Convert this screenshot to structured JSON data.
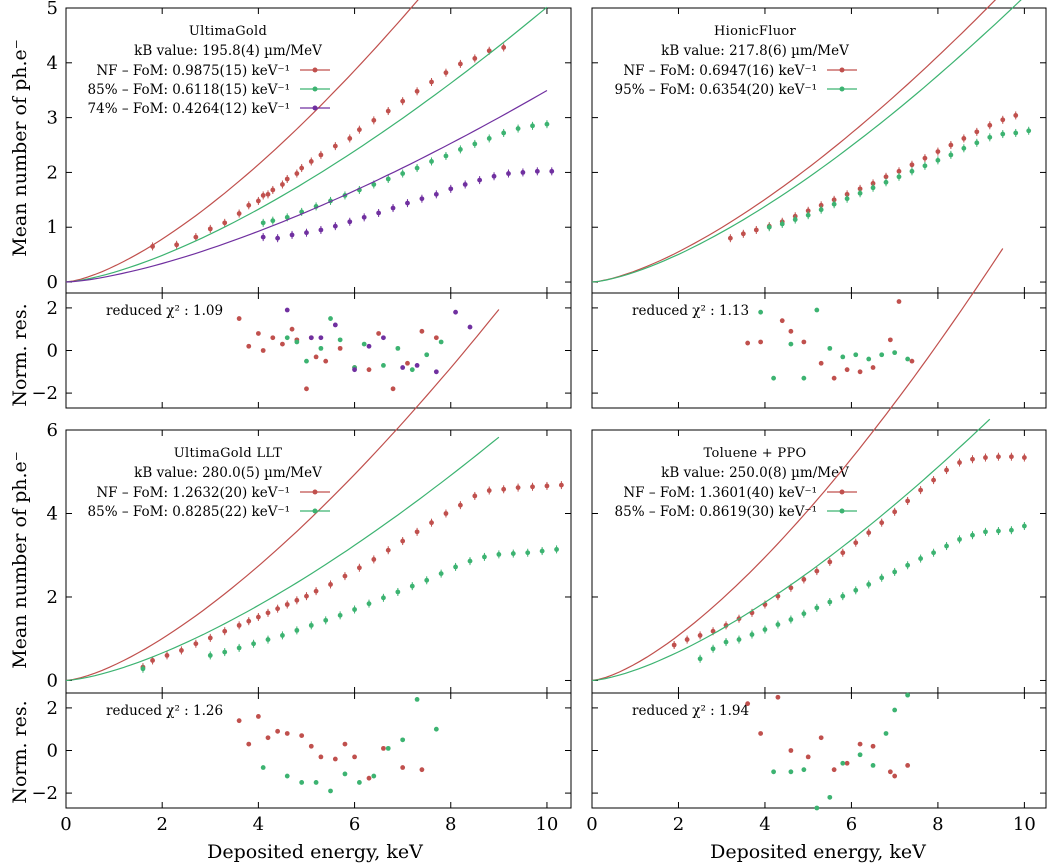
{
  "x_axis_label": "Deposited energy, keV",
  "y_axis_label_main": "Mean number of ph.e⁻",
  "y_axis_label_res": "Norm. res.",
  "chart_data": [
    {
      "type": "scatter",
      "title": "UltimaGold",
      "kb_text": "kB value: 195.8(4) µm/MeV",
      "xlim": [
        0,
        10.5
      ],
      "ylim": [
        -0.2,
        5
      ],
      "yticks": [
        0,
        1,
        2,
        3,
        4,
        5
      ],
      "xticks": [
        0,
        2,
        4,
        6,
        8,
        10
      ],
      "res_ylim": [
        -2.7,
        2.7
      ],
      "res_yticks": [
        -2,
        0,
        2
      ],
      "chi2_text": "reduced χ² : 1.09",
      "series": [
        {
          "name": "NF – FoM: 0.9875(15) keV⁻¹",
          "color": "#c0504d",
          "fom": 0.9875,
          "fit_xmax": 9.0,
          "x": [
            1.8,
            2.3,
            2.7,
            3.0,
            3.3,
            3.6,
            3.8,
            4.0,
            4.1,
            4.2,
            4.3,
            4.5,
            4.6,
            4.8,
            4.9,
            5.1,
            5.3,
            5.6,
            5.9,
            6.1,
            6.4,
            6.7,
            7.0,
            7.3,
            7.6,
            7.9,
            8.2,
            8.5,
            8.8,
            9.1
          ],
          "y": [
            0.65,
            0.68,
            0.82,
            0.97,
            1.08,
            1.25,
            1.4,
            1.48,
            1.58,
            1.6,
            1.68,
            1.78,
            1.88,
            1.98,
            2.08,
            2.2,
            2.32,
            2.48,
            2.62,
            2.78,
            2.95,
            3.12,
            3.3,
            3.48,
            3.65,
            3.82,
            3.98,
            4.08,
            4.22,
            4.28
          ],
          "res_x": [
            3.6,
            3.8,
            4.0,
            4.1,
            4.3,
            4.5,
            4.7,
            4.8,
            5.0,
            5.1,
            5.2,
            5.4,
            5.7,
            6.0,
            6.3,
            6.5,
            6.8,
            7.1,
            7.4,
            7.7
          ],
          "res_y": [
            1.5,
            0.2,
            0.8,
            0.0,
            0.6,
            0.3,
            1.0,
            0.5,
            -1.8,
            0.6,
            -0.3,
            -0.5,
            0.1,
            -0.8,
            -0.9,
            0.8,
            -1.8,
            -0.6,
            0.9,
            0.6
          ]
        },
        {
          "name": "85% – FoM: 0.6118(15) keV⁻¹",
          "color": "#3cb371",
          "fom": 0.6118,
          "fit_xmax": 10.0,
          "x": [
            4.1,
            4.3,
            4.6,
            4.9,
            5.2,
            5.5,
            5.8,
            6.1,
            6.4,
            6.7,
            7.0,
            7.3,
            7.6,
            7.9,
            8.2,
            8.5,
            8.8,
            9.1,
            9.4,
            9.7,
            10.0
          ],
          "y": [
            1.08,
            1.12,
            1.18,
            1.28,
            1.38,
            1.48,
            1.58,
            1.68,
            1.78,
            1.88,
            1.98,
            2.08,
            2.2,
            2.3,
            2.42,
            2.52,
            2.62,
            2.72,
            2.8,
            2.85,
            2.88
          ],
          "res_x": [
            4.6,
            4.8,
            5.0,
            5.3,
            5.5,
            5.7,
            6.0,
            6.2,
            6.6,
            6.9,
            7.2,
            7.5,
            7.8
          ],
          "res_y": [
            0.6,
            0.4,
            -0.5,
            0.1,
            1.5,
            0.5,
            -0.8,
            0.3,
            -0.7,
            0.1,
            -0.9,
            -0.2,
            0.4
          ]
        },
        {
          "name": "74% – FoM: 0.4264(12) keV⁻¹",
          "color": "#7030a0",
          "fom": 0.4264,
          "fit_xmax": 10.0,
          "x": [
            4.1,
            4.4,
            4.7,
            5.0,
            5.3,
            5.6,
            5.9,
            6.2,
            6.5,
            6.8,
            7.1,
            7.4,
            7.7,
            8.0,
            8.3,
            8.6,
            8.9,
            9.2,
            9.5,
            9.8,
            10.1
          ],
          "y": [
            0.82,
            0.8,
            0.86,
            0.9,
            0.95,
            1.02,
            1.1,
            1.18,
            1.26,
            1.35,
            1.44,
            1.52,
            1.6,
            1.7,
            1.78,
            1.86,
            1.93,
            1.98,
            2.0,
            2.02,
            2.02
          ],
          "res_x": [
            4.6,
            5.1,
            5.3,
            5.6,
            6.0,
            6.3,
            6.6,
            7.0,
            7.3,
            7.7,
            8.1,
            8.4
          ],
          "res_y": [
            1.9,
            0.6,
            0.6,
            1.2,
            -0.9,
            0.2,
            0.6,
            -0.8,
            -0.7,
            -1.0,
            1.8,
            1.1
          ]
        }
      ]
    },
    {
      "type": "scatter",
      "title": "HionicFluor",
      "kb_text": "kB value: 217.8(6) µm/MeV",
      "xlim": [
        0,
        10.5
      ],
      "ylim": [
        -0.2,
        5
      ],
      "yticks": [
        0,
        1,
        2,
        3,
        4,
        5
      ],
      "xticks": [
        0,
        2,
        4,
        6,
        8,
        10
      ],
      "res_ylim": [
        -2.7,
        2.7
      ],
      "res_yticks": [
        -2,
        0,
        2
      ],
      "chi2_text": "reduced χ² : 1.13",
      "series": [
        {
          "name": "NF – FoM: 0.6947(16) keV⁻¹",
          "color": "#c0504d",
          "fom": 0.6947,
          "fit_xmax": 9.5,
          "x": [
            3.2,
            3.5,
            3.8,
            4.1,
            4.4,
            4.7,
            5.0,
            5.3,
            5.6,
            5.9,
            6.2,
            6.5,
            6.8,
            7.1,
            7.4,
            7.7,
            8.0,
            8.3,
            8.6,
            8.9,
            9.2,
            9.5,
            9.8
          ],
          "y": [
            0.8,
            0.88,
            0.95,
            1.02,
            1.1,
            1.2,
            1.3,
            1.4,
            1.5,
            1.6,
            1.7,
            1.8,
            1.92,
            2.02,
            2.14,
            2.26,
            2.38,
            2.5,
            2.62,
            2.74,
            2.86,
            2.96,
            3.04
          ],
          "res_x": [
            3.6,
            3.9,
            4.4,
            4.6,
            4.9,
            5.3,
            5.6,
            5.9,
            6.2,
            6.5,
            6.9,
            7.1,
            7.4
          ],
          "res_y": [
            0.35,
            0.4,
            1.4,
            0.9,
            0.4,
            -0.6,
            -1.3,
            -0.9,
            -1.0,
            -0.8,
            0.5,
            2.3,
            -0.5
          ]
        },
        {
          "name": "95% – FoM: 0.6354(20) keV⁻¹",
          "color": "#3cb371",
          "fom": 0.6354,
          "fit_xmax": 10.0,
          "x": [
            4.1,
            4.4,
            4.7,
            5.0,
            5.3,
            5.6,
            5.9,
            6.2,
            6.5,
            6.8,
            7.1,
            7.4,
            7.7,
            8.0,
            8.3,
            8.6,
            8.9,
            9.2,
            9.5,
            9.8,
            10.1
          ],
          "y": [
            1.0,
            1.06,
            1.14,
            1.22,
            1.32,
            1.42,
            1.52,
            1.62,
            1.72,
            1.82,
            1.92,
            2.02,
            2.12,
            2.22,
            2.32,
            2.44,
            2.54,
            2.64,
            2.7,
            2.72,
            2.76
          ],
          "res_x": [
            3.9,
            4.2,
            4.6,
            4.9,
            5.2,
            5.5,
            5.8,
            6.1,
            6.4,
            6.7,
            7.0,
            7.3
          ],
          "res_y": [
            1.8,
            -1.3,
            0.3,
            -1.3,
            1.9,
            0.1,
            -0.3,
            -0.2,
            -0.4,
            -0.2,
            -0.1,
            -0.4
          ]
        }
      ]
    },
    {
      "type": "scatter",
      "title": "UltimaGold LLT",
      "kb_text": "kB value: 280.0(5) µm/MeV",
      "xlim": [
        0,
        10.5
      ],
      "ylim": [
        -0.3,
        6
      ],
      "yticks": [
        0,
        2,
        4,
        6
      ],
      "xticks": [
        0,
        2,
        4,
        6,
        8,
        10
      ],
      "res_ylim": [
        -2.7,
        2.7
      ],
      "res_yticks": [
        -2,
        0,
        2
      ],
      "chi2_text": "reduced χ² : 1.26",
      "series": [
        {
          "name": "NF – FoM: 1.2632(20) keV⁻¹",
          "color": "#c0504d",
          "fom": 1.2632,
          "fit_xmax": 9.0,
          "x": [
            1.6,
            1.8,
            2.1,
            2.4,
            2.7,
            3.0,
            3.3,
            3.6,
            3.8,
            4.0,
            4.2,
            4.4,
            4.6,
            4.8,
            5.0,
            5.2,
            5.5,
            5.8,
            6.1,
            6.4,
            6.7,
            7.0,
            7.3,
            7.6,
            7.9,
            8.2,
            8.5,
            8.8,
            9.1,
            9.4,
            9.7,
            10.0,
            10.3
          ],
          "y": [
            0.32,
            0.48,
            0.6,
            0.72,
            0.88,
            1.02,
            1.18,
            1.32,
            1.42,
            1.52,
            1.62,
            1.72,
            1.82,
            1.92,
            2.02,
            2.14,
            2.3,
            2.5,
            2.7,
            2.9,
            3.12,
            3.34,
            3.56,
            3.78,
            4.0,
            4.2,
            4.42,
            4.55,
            4.58,
            4.62,
            4.64,
            4.66,
            4.68
          ],
          "res_x": [
            3.6,
            3.8,
            4.0,
            4.2,
            4.4,
            4.6,
            4.9,
            5.1,
            5.3,
            5.6,
            5.8,
            6.0,
            6.3,
            6.6,
            7.0,
            7.4
          ],
          "res_y": [
            1.4,
            0.3,
            1.6,
            0.6,
            0.9,
            0.8,
            0.7,
            0.2,
            -0.3,
            -0.4,
            0.3,
            -0.3,
            -1.3,
            0.1,
            -0.8,
            -0.9
          ]
        },
        {
          "name": "85% – FoM: 0.8285(22) keV⁻¹",
          "color": "#3cb371",
          "fom": 0.8285,
          "fit_xmax": 9.0,
          "x": [
            1.6,
            3.0,
            3.3,
            3.6,
            3.9,
            4.2,
            4.5,
            4.8,
            5.1,
            5.4,
            5.7,
            6.0,
            6.3,
            6.6,
            6.9,
            7.2,
            7.5,
            7.8,
            8.1,
            8.4,
            8.7,
            9.0,
            9.3,
            9.6,
            9.9,
            10.2
          ],
          "y": [
            0.28,
            0.6,
            0.68,
            0.78,
            0.88,
            0.98,
            1.08,
            1.2,
            1.32,
            1.44,
            1.56,
            1.7,
            1.84,
            1.98,
            2.12,
            2.26,
            2.4,
            2.56,
            2.72,
            2.86,
            2.96,
            3.02,
            3.04,
            3.06,
            3.1,
            3.14
          ],
          "res_x": [
            4.1,
            4.6,
            4.9,
            5.2,
            5.5,
            5.8,
            6.1,
            6.4,
            6.7,
            7.0,
            7.3,
            7.7
          ],
          "res_y": [
            -0.8,
            -1.2,
            -1.5,
            -1.5,
            -1.9,
            -1.1,
            -1.5,
            -1.2,
            0.1,
            0.5,
            2.4,
            1.0
          ]
        }
      ]
    },
    {
      "type": "scatter",
      "title": "Toluene + PPO",
      "kb_text": "kB value: 250.0(8) µm/MeV",
      "xlim": [
        0,
        10.5
      ],
      "ylim": [
        -0.3,
        6
      ],
      "yticks": [
        0,
        2,
        4,
        6
      ],
      "xticks": [
        0,
        2,
        4,
        6,
        8,
        10
      ],
      "res_ylim": [
        -2.7,
        2.7
      ],
      "res_yticks": [
        -2,
        0,
        2
      ],
      "chi2_text": "reduced χ² : 1.94",
      "series": [
        {
          "name": "NF – FoM: 1.3601(40) keV⁻¹",
          "color": "#c0504d",
          "fom": 1.3601,
          "fit_xmax": 9.5,
          "x": [
            1.9,
            2.2,
            2.5,
            2.8,
            3.1,
            3.4,
            3.7,
            4.0,
            4.3,
            4.6,
            4.9,
            5.2,
            5.5,
            5.8,
            6.1,
            6.4,
            6.7,
            7.0,
            7.3,
            7.6,
            7.9,
            8.2,
            8.5,
            8.8,
            9.1,
            9.4,
            9.7,
            10.0
          ],
          "y": [
            0.85,
            0.98,
            1.08,
            1.18,
            1.32,
            1.48,
            1.62,
            1.82,
            2.02,
            2.22,
            2.42,
            2.62,
            2.84,
            3.06,
            3.3,
            3.54,
            3.78,
            4.04,
            4.3,
            4.56,
            4.8,
            5.04,
            5.22,
            5.3,
            5.34,
            5.36,
            5.36,
            5.34
          ],
          "res_x": [
            3.6,
            3.9,
            4.3,
            4.6,
            5.0,
            5.3,
            5.6,
            5.9,
            6.2,
            6.5,
            6.9,
            7.0,
            7.3
          ],
          "res_y": [
            2.2,
            0.8,
            2.5,
            0.0,
            -0.3,
            0.6,
            -0.9,
            -0.6,
            0.3,
            0.2,
            -1.0,
            -1.2,
            -0.7
          ]
        },
        {
          "name": "85% – FoM: 0.8619(30) keV⁻¹",
          "color": "#3cb371",
          "fom": 0.8619,
          "fit_xmax": 9.2,
          "x": [
            2.5,
            2.8,
            3.1,
            3.4,
            3.7,
            4.0,
            4.3,
            4.6,
            4.9,
            5.2,
            5.5,
            5.8,
            6.1,
            6.4,
            6.7,
            7.0,
            7.3,
            7.6,
            7.9,
            8.2,
            8.5,
            8.8,
            9.1,
            9.4,
            9.7,
            10.0
          ],
          "y": [
            0.52,
            0.76,
            0.92,
            0.98,
            1.1,
            1.22,
            1.34,
            1.46,
            1.6,
            1.74,
            1.88,
            2.02,
            2.16,
            2.3,
            2.46,
            2.6,
            2.76,
            2.92,
            3.06,
            3.22,
            3.38,
            3.48,
            3.56,
            3.58,
            3.6,
            3.7
          ],
          "res_x": [
            4.2,
            4.6,
            4.9,
            5.2,
            5.5,
            5.8,
            6.2,
            6.5,
            6.8,
            7.0,
            7.3
          ],
          "res_y": [
            -1.0,
            -1.0,
            -0.9,
            -2.7,
            -2.2,
            -0.6,
            -0.2,
            -0.7,
            0.8,
            1.9,
            2.6
          ]
        }
      ]
    }
  ]
}
